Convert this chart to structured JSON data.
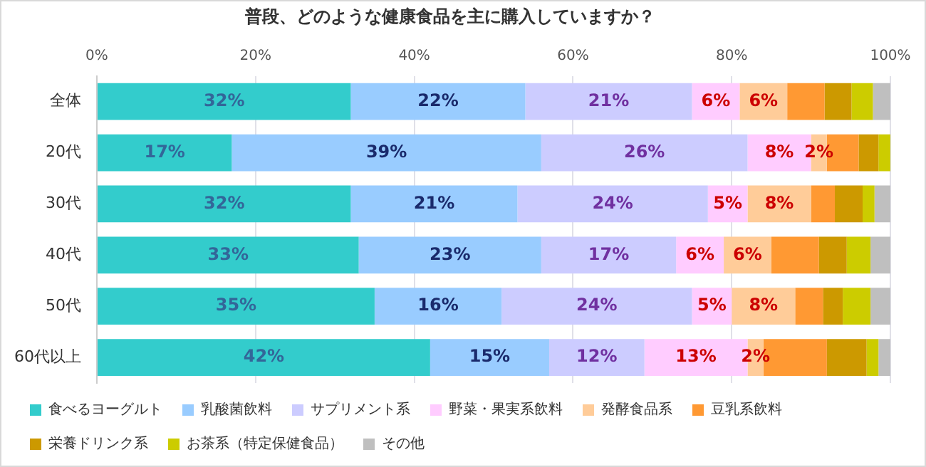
{
  "chart_data": {
    "type": "bar",
    "orientation": "horizontal",
    "stacked": true,
    "title": "普段、どのような健康食品を主に購入していますか？",
    "categories": [
      "全体",
      "20代",
      "30代",
      "40代",
      "50代",
      "60代以上"
    ],
    "xlim": [
      0,
      100
    ],
    "xticks": [
      {
        "value": 0,
        "label": "0%"
      },
      {
        "value": 20,
        "label": "20%"
      },
      {
        "value": 40,
        "label": "40%"
      },
      {
        "value": 60,
        "label": "60%"
      },
      {
        "value": 80,
        "label": "80%"
      },
      {
        "value": 100,
        "label": "100%"
      }
    ],
    "grid": "x",
    "legend": "bottom",
    "series": [
      {
        "name": "食べるヨーグルト",
        "color": "#33cccc",
        "values": [
          32,
          17,
          32,
          33,
          35,
          42
        ],
        "value_labels": [
          "32%",
          "17%",
          "32%",
          "33%",
          "35%",
          "42%"
        ]
      },
      {
        "name": "乳酸菌飲料",
        "color": "#99ccff",
        "values": [
          22,
          39,
          21,
          23,
          16,
          15
        ],
        "value_labels": [
          "22%",
          "39%",
          "21%",
          "23%",
          "16%",
          "15%"
        ]
      },
      {
        "name": "サプリメント系",
        "color": "#ccccff",
        "values": [
          21,
          26,
          24,
          17,
          24,
          12
        ],
        "value_labels": [
          "21%",
          "26%",
          "24%",
          "17%",
          "24%",
          "12%"
        ]
      },
      {
        "name": "野菜・果実系飲料",
        "color": "#ffccff",
        "values": [
          6,
          8,
          5,
          6,
          5,
          13
        ],
        "value_labels": [
          "6%",
          "8%",
          "5%",
          "6%",
          "5%",
          "13%"
        ]
      },
      {
        "name": "発酵食品系",
        "color": "#ffcc99",
        "values": [
          6,
          2,
          8,
          6,
          8,
          2
        ],
        "value_labels": [
          "6%",
          "2%",
          "8%",
          "6%",
          "8%",
          "2%"
        ]
      },
      {
        "name": "豆乳系飲料",
        "color": "#ff9933",
        "values": [
          4.7,
          4,
          3,
          6,
          3.5,
          8
        ]
      },
      {
        "name": "栄養ドリンク系",
        "color": "#cc9900",
        "values": [
          3.4,
          2.5,
          3.5,
          3.5,
          2.5,
          5
        ]
      },
      {
        "name": "お茶系（特定保健食品）",
        "color": "#cccc00",
        "values": [
          2.7,
          1.5,
          1.5,
          3,
          3.5,
          1.5
        ]
      },
      {
        "name": "その他",
        "color": "#bfbfbf",
        "values": [
          2.2,
          0,
          2,
          2.5,
          2.5,
          1.5
        ]
      }
    ]
  }
}
